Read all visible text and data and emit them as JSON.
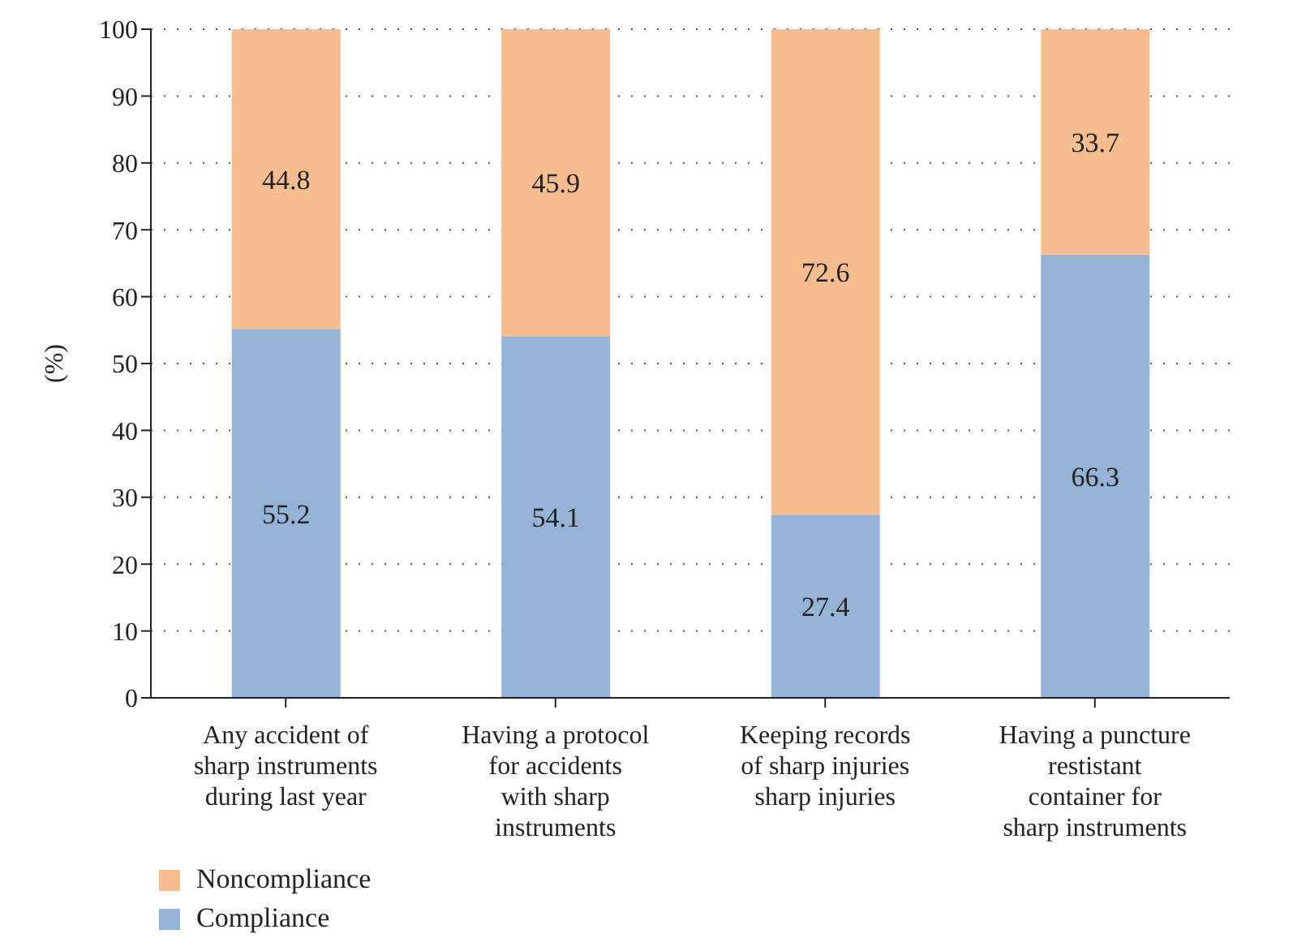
{
  "chart_data": {
    "type": "bar",
    "stacked": true,
    "ylabel": "(%)",
    "categories": [
      "Any accident of sharp instruments during last year",
      "Having a protocol for accidents with sharp instruments",
      "Keeping records of sharp injuries sharp injuries",
      "Having a puncture restistant container for sharp instruments"
    ],
    "series": [
      {
        "name": "Compliance",
        "color": "#95b3d7",
        "values": [
          55.2,
          54.1,
          27.4,
          66.3
        ]
      },
      {
        "name": "Noncompliance",
        "color": "#f6bd8f",
        "values": [
          44.8,
          45.9,
          72.6,
          33.7
        ]
      }
    ],
    "ylim": [
      0,
      100
    ],
    "yticks": [
      0,
      10,
      20,
      30,
      40,
      50,
      60,
      70,
      80,
      90,
      100
    ],
    "grid": "y",
    "legend": "bottom left",
    "data_labels": true
  }
}
